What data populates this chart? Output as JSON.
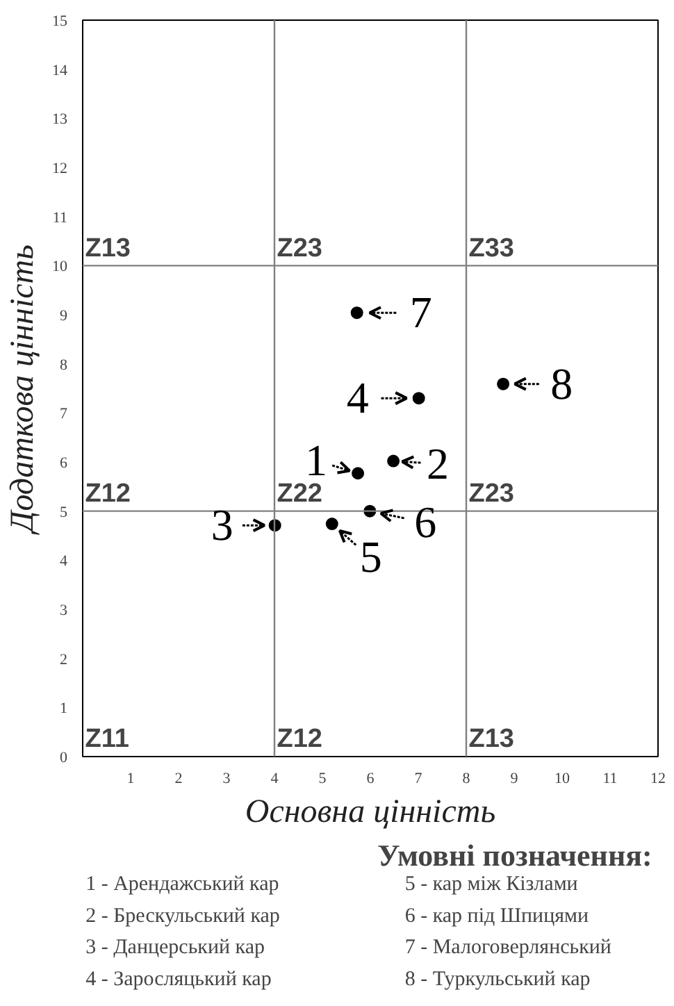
{
  "chart_data": {
    "type": "scatter",
    "xlabel": "Основна цінність",
    "ylabel": "Додаткова цінність",
    "x": [
      5.74,
      6.48,
      4.01,
      7.01,
      5.2,
      5.99,
      5.72,
      8.77
    ],
    "values": [
      5.77,
      6.02,
      4.71,
      7.3,
      4.74,
      5.0,
      9.04,
      7.59
    ],
    "color": "#000000",
    "marker": "circle",
    "grid": false,
    "xlim": [
      0,
      12
    ],
    "ylim": [
      0,
      15
    ],
    "xticks": [
      1,
      2,
      3,
      4,
      5,
      6,
      7,
      8,
      9,
      10,
      11,
      12
    ],
    "yticks": [
      0,
      1,
      2,
      3,
      4,
      5,
      6,
      7,
      8,
      9,
      10,
      11,
      12,
      13,
      14,
      15
    ],
    "ref_lines": [
      {
        "axis": "x",
        "value": 4,
        "color": "#808080"
      },
      {
        "axis": "x",
        "value": 8,
        "color": "#808080"
      },
      {
        "axis": "y",
        "value": 5,
        "color": "#808080"
      },
      {
        "axis": "y",
        "value": 10,
        "color": "#808080"
      }
    ],
    "annotations": [
      {
        "text": "1",
        "x": 5.74,
        "y": 5.77
      },
      {
        "text": "2",
        "x": 6.48,
        "y": 6.02
      },
      {
        "text": "3",
        "x": 4.01,
        "y": 4.71
      },
      {
        "text": "4",
        "x": 7.01,
        "y": 7.3
      },
      {
        "text": "5",
        "x": 5.2,
        "y": 4.74
      },
      {
        "text": "6",
        "x": 5.99,
        "y": 5.0
      },
      {
        "text": "7",
        "x": 5.72,
        "y": 9.04
      },
      {
        "text": "8",
        "x": 8.77,
        "y": 7.59
      },
      "Z13",
      "Z23",
      "Z33",
      "Z12",
      "Z22",
      "Z23",
      "Z11",
      "Z12",
      "Z13",
      "Умовні позначення:",
      "1 - Арендажський кар",
      "2 - Брескульський кар",
      "3 - Данцерський кар",
      "4 - Заросляцький кар",
      "5 - кар між Кізлами",
      "6 - кар під Шпицями",
      "7 - Малоговерлянський",
      "8 - Туркульський кар"
    ]
  }
}
